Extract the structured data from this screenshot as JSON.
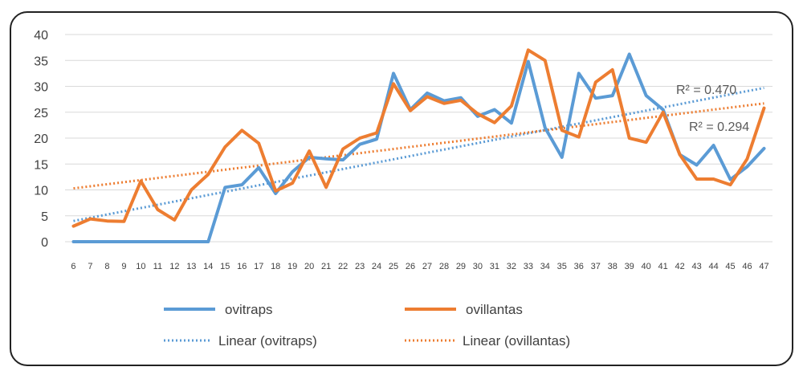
{
  "chart_data": {
    "type": "line",
    "title": "",
    "xlabel": "",
    "ylabel": "",
    "ylim": [
      0,
      40
    ],
    "y_ticks": [
      0,
      5,
      10,
      15,
      20,
      25,
      30,
      35,
      40
    ],
    "grid": "horizontal",
    "legend_position": "bottom",
    "x": [
      6,
      7,
      8,
      9,
      10,
      11,
      12,
      13,
      14,
      15,
      16,
      17,
      18,
      19,
      20,
      21,
      22,
      23,
      24,
      25,
      26,
      27,
      28,
      29,
      30,
      31,
      32,
      33,
      34,
      35,
      36,
      37,
      38,
      39,
      40,
      41,
      42,
      43,
      44,
      45,
      46,
      47
    ],
    "series": [
      {
        "name": "ovitraps",
        "color": "#5B9BD5",
        "style": "solid",
        "values": [
          0,
          0,
          0,
          0,
          0,
          0,
          0,
          0,
          0,
          10.5,
          11,
          14.3,
          9.3,
          13.5,
          16.3,
          16,
          15.8,
          18.8,
          19.8,
          32.5,
          25.5,
          28.7,
          27.2,
          27.8,
          24.2,
          25.5,
          22.9,
          34.8,
          22,
          16.3,
          32.5,
          27.7,
          28.2,
          36.2,
          28.2,
          25.5,
          16.8,
          14.8,
          18.6,
          12,
          14.5,
          18
        ]
      },
      {
        "name": "ovillantas",
        "color": "#ED7D31",
        "style": "solid",
        "values": [
          3,
          4.4,
          4,
          3.9,
          11.7,
          6.2,
          4.2,
          10,
          13,
          18.3,
          21.5,
          19,
          9.8,
          11.3,
          17.5,
          10.5,
          17.9,
          20,
          21,
          30.5,
          25.3,
          28,
          26.7,
          27.3,
          24.7,
          23,
          26.2,
          37,
          35,
          21.5,
          20.2,
          30.8,
          33.2,
          20,
          19.2,
          25,
          16.8,
          12.1,
          12.1,
          11,
          16,
          25.8
        ]
      }
    ],
    "trendlines": [
      {
        "name": "Linear (ovitraps)",
        "color": "#5B9BD5",
        "style": "dotted",
        "start": [
          6,
          4.0
        ],
        "end": [
          47,
          29.7
        ],
        "r2_label": "R² = 0.470"
      },
      {
        "name": "Linear (ovillantas)",
        "color": "#ED7D31",
        "style": "dotted",
        "start": [
          6,
          10.3
        ],
        "end": [
          47,
          26.7
        ],
        "r2_label": "R² = 0.294"
      }
    ],
    "legend": [
      {
        "label": "ovitraps",
        "color": "#5B9BD5",
        "style": "solid"
      },
      {
        "label": "ovillantas",
        "color": "#ED7D31",
        "style": "solid"
      },
      {
        "label": "Linear (ovitraps)",
        "color": "#5B9BD5",
        "style": "dotted"
      },
      {
        "label": "Linear (ovillantas)",
        "color": "#ED7D31",
        "style": "dotted"
      }
    ]
  }
}
